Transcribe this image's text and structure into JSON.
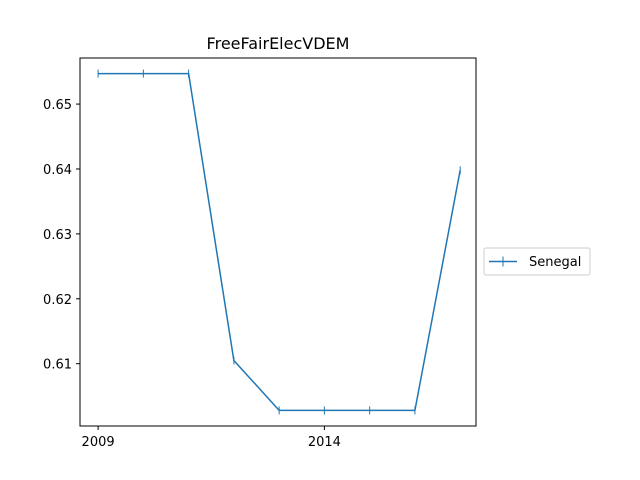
{
  "chart_data": {
    "type": "line",
    "title": "FreeFairElecVDEM",
    "xlabel": "",
    "ylabel": "",
    "x": [
      2009,
      2010,
      2011,
      2012,
      2013,
      2014,
      2015,
      2016,
      2017
    ],
    "series": [
      {
        "name": "Senegal",
        "color": "#1f77b4",
        "marker": "plus",
        "values": [
          0.6547,
          0.6547,
          0.6547,
          0.6105,
          0.6028,
          0.6028,
          0.6028,
          0.6028,
          0.6398
        ]
      }
    ],
    "xlim": [
      2008.6,
      2017.35
    ],
    "ylim": [
      0.6004,
      0.6571
    ],
    "xticks": [
      2009,
      2014
    ],
    "yticks": [
      0.61,
      0.62,
      0.63,
      0.64,
      0.65
    ],
    "grid": false,
    "legend_position": "right-outside"
  }
}
